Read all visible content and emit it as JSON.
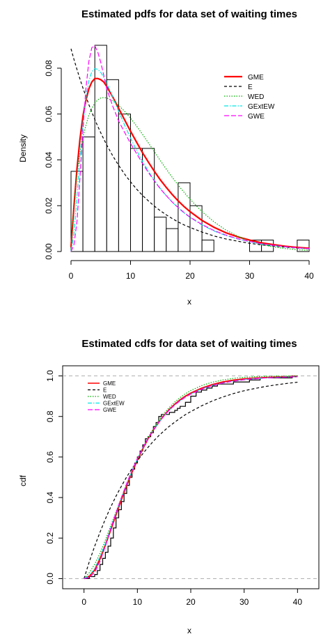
{
  "chart_data": [
    {
      "type": "histogram",
      "title": "Estimated pdfs for data set of waiting times",
      "xlabel": "x",
      "ylabel": "Density",
      "xlim": [
        0,
        40
      ],
      "ylim": [
        0,
        0.09
      ],
      "xticks": [
        0,
        10,
        20,
        30,
        40
      ],
      "yticks": [
        0.0,
        0.02,
        0.04,
        0.06,
        0.08
      ],
      "ytick_labels": [
        "0.00",
        "0.02",
        "0.04",
        "0.06",
        "0.08"
      ],
      "bins": [
        {
          "x0": 0,
          "x1": 2,
          "density": 0.035
        },
        {
          "x0": 2,
          "x1": 4,
          "density": 0.05
        },
        {
          "x0": 4,
          "x1": 6,
          "density": 0.09
        },
        {
          "x0": 6,
          "x1": 8,
          "density": 0.075
        },
        {
          "x0": 8,
          "x1": 10,
          "density": 0.06
        },
        {
          "x0": 10,
          "x1": 12,
          "density": 0.045
        },
        {
          "x0": 12,
          "x1": 14,
          "density": 0.045
        },
        {
          "x0": 14,
          "x1": 16,
          "density": 0.015
        },
        {
          "x0": 16,
          "x1": 18,
          "density": 0.01
        },
        {
          "x0": 18,
          "x1": 20,
          "density": 0.03
        },
        {
          "x0": 20,
          "x1": 22,
          "density": 0.02
        },
        {
          "x0": 22,
          "x1": 24,
          "density": 0.005
        },
        {
          "x0": 24,
          "x1": 26,
          "density": 0.0
        },
        {
          "x0": 26,
          "x1": 28,
          "density": 0.0
        },
        {
          "x0": 28,
          "x1": 30,
          "density": 0.0
        },
        {
          "x0": 30,
          "x1": 32,
          "density": 0.005
        },
        {
          "x0": 32,
          "x1": 34,
          "density": 0.005
        },
        {
          "x0": 34,
          "x1": 36,
          "density": 0.0
        },
        {
          "x0": 36,
          "x1": 38,
          "density": 0.0
        },
        {
          "x0": 38,
          "x1": 40,
          "density": 0.005
        }
      ],
      "x": [
        0,
        0.5,
        1,
        1.5,
        2,
        2.5,
        3,
        3.5,
        4,
        4.5,
        5,
        5.5,
        6,
        7,
        8,
        9,
        10,
        11,
        12,
        13,
        14,
        15,
        16,
        17,
        18,
        19,
        20,
        22,
        24,
        26,
        28,
        30,
        32,
        34,
        36,
        38,
        40
      ],
      "series": [
        {
          "name": "GME",
          "color": "#ff0000",
          "dash": "solid",
          "width": 2.2,
          "values": [
            0.002,
            0.02,
            0.036,
            0.049,
            0.059,
            0.066,
            0.071,
            0.074,
            0.0755,
            0.0755,
            0.075,
            0.074,
            0.072,
            0.0675,
            0.0625,
            0.0575,
            0.0525,
            0.0478,
            0.0432,
            0.039,
            0.035,
            0.0313,
            0.028,
            0.0249,
            0.0221,
            0.0196,
            0.0174,
            0.0136,
            0.0106,
            0.0082,
            0.0064,
            0.005,
            0.0038,
            0.003,
            0.0023,
            0.0018,
            0.0014
          ]
        },
        {
          "name": "E",
          "color": "#000000",
          "dash": "4,3",
          "width": 1.2,
          "values": [
            0.0885,
            0.0838,
            0.0795,
            0.0753,
            0.0714,
            0.0677,
            0.0641,
            0.0608,
            0.0576,
            0.0546,
            0.0518,
            0.0491,
            0.0465,
            0.0418,
            0.0376,
            0.0338,
            0.0304,
            0.0273,
            0.0245,
            0.0221,
            0.0198,
            0.0178,
            0.016,
            0.0144,
            0.0129,
            0.0116,
            0.0105,
            0.0085,
            0.0068,
            0.0055,
            0.0045,
            0.0036,
            0.0029,
            0.0024,
            0.0019,
            0.0015,
            0.0012
          ]
        },
        {
          "name": "WED",
          "color": "#00b000",
          "dash": "1.5,2",
          "width": 1.2,
          "values": [
            0.0,
            0.022,
            0.034,
            0.043,
            0.05,
            0.055,
            0.0595,
            0.0625,
            0.0648,
            0.0662,
            0.067,
            0.0672,
            0.067,
            0.0658,
            0.0638,
            0.0612,
            0.0582,
            0.0548,
            0.0512,
            0.0474,
            0.0436,
            0.0397,
            0.036,
            0.0324,
            0.029,
            0.0258,
            0.0228,
            0.0174,
            0.013,
            0.0094,
            0.0067,
            0.0046,
            0.0031,
            0.002,
            0.0013,
            0.0008,
            0.0005
          ]
        },
        {
          "name": "GExtEW",
          "color": "#00e5e5",
          "dash": "6,2,1.5,2",
          "width": 1.2,
          "values": [
            0.0,
            0.008,
            0.024,
            0.041,
            0.056,
            0.067,
            0.0745,
            0.0785,
            0.0798,
            0.0795,
            0.0782,
            0.076,
            0.0735,
            0.0675,
            0.0612,
            0.0552,
            0.0495,
            0.0442,
            0.0394,
            0.035,
            0.0311,
            0.0275,
            0.0244,
            0.0216,
            0.0191,
            0.0168,
            0.0149,
            0.0116,
            0.009,
            0.007,
            0.0055,
            0.0043,
            0.0033,
            0.0026,
            0.002,
            0.0016,
            0.0012
          ]
        },
        {
          "name": "GWE",
          "color": "#ff00ff",
          "dash": "7,3",
          "width": 1.2,
          "values": [
            0.0,
            0.003,
            0.013,
            0.032,
            0.053,
            0.071,
            0.083,
            0.089,
            0.0898,
            0.087,
            0.0825,
            0.077,
            0.071,
            0.0635,
            0.057,
            0.052,
            0.0472,
            0.0428,
            0.0385,
            0.0345,
            0.0308,
            0.0274,
            0.0244,
            0.0216,
            0.0192,
            0.017,
            0.015,
            0.0118,
            0.0092,
            0.0072,
            0.0056,
            0.0044,
            0.0034,
            0.0027,
            0.0021,
            0.0016,
            0.0013
          ]
        }
      ],
      "legend": {
        "position": "top-right",
        "entries": [
          "GME",
          "E",
          "WED",
          "GExtEW",
          "GWE"
        ]
      }
    },
    {
      "type": "line",
      "title": "Estimated cdfs for data set of waiting times",
      "xlabel": "x",
      "ylabel": "cdf",
      "xlim": [
        -4,
        44
      ],
      "ylim": [
        -0.05,
        1.05
      ],
      "xticks": [
        0,
        10,
        20,
        30,
        40
      ],
      "yticks": [
        0.0,
        0.2,
        0.4,
        0.6,
        0.8,
        1.0
      ],
      "ytick_labels": [
        "0.0",
        "0.2",
        "0.4",
        "0.6",
        "0.8",
        "1.0"
      ],
      "reference_lines_y": [
        0,
        1
      ],
      "x": [
        0,
        1,
        2,
        3,
        4,
        5,
        6,
        7,
        8,
        9,
        10,
        11,
        12,
        13,
        14,
        15,
        16,
        17,
        18,
        19,
        20,
        22,
        24,
        26,
        28,
        30,
        32,
        34,
        36,
        38,
        40
      ],
      "series": [
        {
          "name": "GME",
          "color": "#ff0000",
          "dash": "solid",
          "width": 2,
          "values": [
            0.0,
            0.012,
            0.042,
            0.098,
            0.165,
            0.24,
            0.315,
            0.39,
            0.46,
            0.525,
            0.585,
            0.64,
            0.69,
            0.733,
            0.771,
            0.805,
            0.835,
            0.86,
            0.882,
            0.9,
            0.915,
            0.939,
            0.957,
            0.97,
            0.979,
            0.985,
            0.989,
            0.992,
            0.994,
            0.996,
            0.997
          ]
        },
        {
          "name": "E",
          "color": "#000000",
          "dash": "4,3",
          "width": 1.2,
          "values": [
            0.0,
            0.084,
            0.16,
            0.229,
            0.294,
            0.353,
            0.407,
            0.456,
            0.502,
            0.543,
            0.581,
            0.616,
            0.648,
            0.678,
            0.705,
            0.729,
            0.752,
            0.772,
            0.791,
            0.809,
            0.824,
            0.852,
            0.876,
            0.896,
            0.913,
            0.927,
            0.938,
            0.948,
            0.956,
            0.963,
            0.969
          ]
        },
        {
          "name": "WED",
          "color": "#00b000",
          "dash": "1.5,2",
          "width": 1.2,
          "values": [
            0.0,
            0.03,
            0.07,
            0.125,
            0.19,
            0.26,
            0.33,
            0.4,
            0.467,
            0.53,
            0.59,
            0.645,
            0.695,
            0.74,
            0.78,
            0.815,
            0.845,
            0.871,
            0.893,
            0.912,
            0.928,
            0.952,
            0.969,
            0.98,
            0.988,
            0.993,
            0.996,
            0.998,
            0.999,
            0.999,
            1.0
          ]
        },
        {
          "name": "GExtEW",
          "color": "#00e5e5",
          "dash": "6,2,1.5,2",
          "width": 1.2,
          "values": [
            0.0,
            0.015,
            0.05,
            0.108,
            0.175,
            0.25,
            0.325,
            0.398,
            0.467,
            0.531,
            0.59,
            0.643,
            0.691,
            0.733,
            0.77,
            0.803,
            0.832,
            0.857,
            0.878,
            0.896,
            0.911,
            0.935,
            0.953,
            0.966,
            0.975,
            0.982,
            0.987,
            0.99,
            0.993,
            0.995,
            0.996
          ]
        },
        {
          "name": "GWE",
          "color": "#ff00ff",
          "dash": "7,3",
          "width": 1.2,
          "values": [
            0.0,
            0.005,
            0.03,
            0.085,
            0.16,
            0.245,
            0.325,
            0.4,
            0.47,
            0.535,
            0.593,
            0.645,
            0.692,
            0.734,
            0.771,
            0.803,
            0.832,
            0.856,
            0.877,
            0.895,
            0.91,
            0.934,
            0.952,
            0.965,
            0.974,
            0.981,
            0.986,
            0.99,
            0.992,
            0.994,
            0.996
          ]
        }
      ],
      "ecdf_steps": [
        [
          0,
          0.0
        ],
        [
          1,
          0.01
        ],
        [
          2,
          0.02
        ],
        [
          2.5,
          0.04
        ],
        [
          3,
          0.07
        ],
        [
          3.5,
          0.1
        ],
        [
          4,
          0.13
        ],
        [
          4.5,
          0.16
        ],
        [
          5,
          0.2
        ],
        [
          5.5,
          0.25
        ],
        [
          6,
          0.3
        ],
        [
          6.5,
          0.34
        ],
        [
          7,
          0.38
        ],
        [
          7.5,
          0.42
        ],
        [
          8,
          0.46
        ],
        [
          8.5,
          0.5
        ],
        [
          9,
          0.54
        ],
        [
          9.5,
          0.57
        ],
        [
          10,
          0.6
        ],
        [
          10.5,
          0.63
        ],
        [
          11,
          0.66
        ],
        [
          11.5,
          0.69
        ],
        [
          12,
          0.7
        ],
        [
          12.5,
          0.72
        ],
        [
          13,
          0.75
        ],
        [
          13.5,
          0.77
        ],
        [
          14,
          0.8
        ],
        [
          14.5,
          0.81
        ],
        [
          15,
          0.81
        ],
        [
          16,
          0.82
        ],
        [
          17,
          0.83
        ],
        [
          17.5,
          0.84
        ],
        [
          18,
          0.85
        ],
        [
          19,
          0.87
        ],
        [
          20,
          0.9
        ],
        [
          21,
          0.92
        ],
        [
          22,
          0.93
        ],
        [
          23,
          0.94
        ],
        [
          24,
          0.95
        ],
        [
          25,
          0.96
        ],
        [
          27,
          0.96
        ],
        [
          28,
          0.97
        ],
        [
          31,
          0.98
        ],
        [
          33,
          0.99
        ],
        [
          38,
          0.99
        ],
        [
          39,
          1.0
        ],
        [
          40,
          1.0
        ]
      ],
      "legend": {
        "position": "top-left",
        "entries": [
          "GME",
          "E",
          "WED",
          "GExtEW",
          "GWE"
        ]
      }
    }
  ]
}
